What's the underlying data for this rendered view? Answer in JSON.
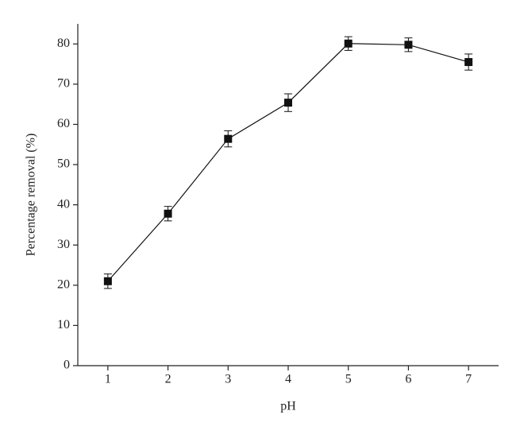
{
  "chart_data": {
    "type": "line",
    "x_label": "pH",
    "y_label": "Percentage removal (%)",
    "x": [
      1,
      2,
      3,
      4,
      5,
      6,
      7
    ],
    "series": [
      {
        "color": "#111111",
        "values": [
          21,
          37.8,
          56.4,
          65.4,
          80.1,
          79.8,
          75.5
        ],
        "errors": [
          1.8,
          1.8,
          2,
          2.2,
          1.7,
          1.7,
          2
        ]
      }
    ],
    "xlim": [
      0.5,
      7.5
    ],
    "xticks": [
      1,
      2,
      3,
      4,
      5,
      6,
      7
    ],
    "ylim": [
      0,
      85
    ],
    "yticks": [
      0,
      10,
      20,
      30,
      40,
      50,
      60,
      70,
      80
    ]
  }
}
